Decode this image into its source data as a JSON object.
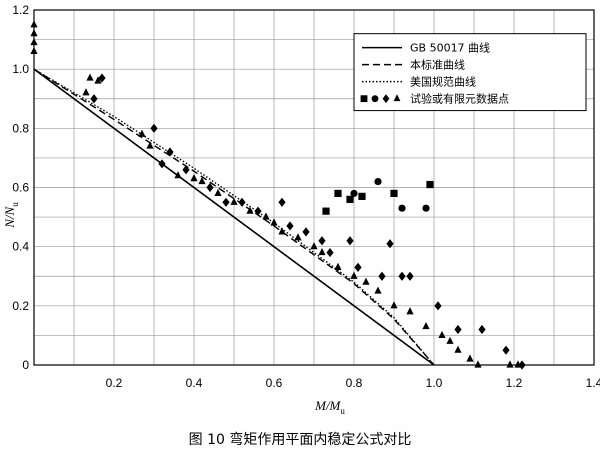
{
  "chart_data": {
    "type": "scatter",
    "caption": "图 10   弯矩作用平面内稳定公式对比",
    "xlabel": {
      "main": "M/M",
      "sub": "u"
    },
    "ylabel": {
      "main": "N/N",
      "sub": "u"
    },
    "xlim": [
      0,
      1.4
    ],
    "ylim": [
      0,
      1.2
    ],
    "x_ticks": [
      {
        "value": 0.2,
        "label": "0.2"
      },
      {
        "value": 0.4,
        "label": "0.4"
      },
      {
        "value": 0.6,
        "label": "0.6"
      },
      {
        "value": 0.8,
        "label": "0.8"
      },
      {
        "value": 1.0,
        "label": "1.0"
      },
      {
        "value": 1.2,
        "label": "1.2"
      },
      {
        "value": 1.4,
        "label": "1.4"
      }
    ],
    "y_ticks": [
      {
        "value": 0,
        "label": "0"
      },
      {
        "value": 0.2,
        "label": "0.2"
      },
      {
        "value": 0.4,
        "label": "0.4"
      },
      {
        "value": 0.6,
        "label": "0.6"
      },
      {
        "value": 0.8,
        "label": "0.8"
      },
      {
        "value": 1.0,
        "label": "1.0"
      },
      {
        "value": 1.2,
        "label": "1.2"
      }
    ],
    "grid": true,
    "legend_position": "top-right",
    "legend": [
      {
        "label": "GB 50017 曲线",
        "style": "solid"
      },
      {
        "label": "本标准曲线",
        "style": "dashed"
      },
      {
        "label": "美国规范曲线",
        "style": "dotted"
      },
      {
        "label": "试验或有限元数据点",
        "style": "markers"
      }
    ],
    "lines": [
      {
        "name": "GB 50017 曲线",
        "style": "solid",
        "points": [
          [
            0,
            1.0
          ],
          [
            1.0,
            0
          ]
        ]
      },
      {
        "name": "本标准曲线",
        "style": "dashed",
        "points": [
          [
            0,
            1.0
          ],
          [
            0.2,
            0.83
          ],
          [
            0.4,
            0.655
          ],
          [
            0.6,
            0.47
          ],
          [
            0.8,
            0.275
          ],
          [
            0.9,
            0.155
          ],
          [
            1.0,
            0
          ]
        ]
      },
      {
        "name": "美国规范曲线",
        "style": "dotted",
        "points": [
          [
            0,
            1.0
          ],
          [
            0.2,
            0.84
          ],
          [
            0.4,
            0.665
          ],
          [
            0.6,
            0.48
          ],
          [
            0.8,
            0.28
          ],
          [
            0.9,
            0.16
          ],
          [
            1.0,
            0
          ]
        ]
      }
    ],
    "series": [
      {
        "marker": "square",
        "points": [
          [
            0.73,
            0.52
          ],
          [
            0.76,
            0.58
          ],
          [
            0.79,
            0.56
          ],
          [
            0.82,
            0.57
          ],
          [
            0.9,
            0.58
          ],
          [
            0.99,
            0.61
          ]
        ]
      },
      {
        "marker": "circle",
        "points": [
          [
            0.8,
            0.58
          ],
          [
            0.86,
            0.62
          ],
          [
            0.92,
            0.53
          ],
          [
            0.98,
            0.53
          ]
        ]
      },
      {
        "marker": "diamond",
        "points": [
          [
            0.15,
            0.9
          ],
          [
            0.17,
            0.97
          ],
          [
            0.3,
            0.8
          ],
          [
            0.32,
            0.68
          ],
          [
            0.34,
            0.72
          ],
          [
            0.38,
            0.66
          ],
          [
            0.44,
            0.6
          ],
          [
            0.48,
            0.55
          ],
          [
            0.52,
            0.55
          ],
          [
            0.56,
            0.52
          ],
          [
            0.62,
            0.55
          ],
          [
            0.64,
            0.47
          ],
          [
            0.68,
            0.45
          ],
          [
            0.72,
            0.42
          ],
          [
            0.74,
            0.38
          ],
          [
            0.79,
            0.42
          ],
          [
            0.81,
            0.33
          ],
          [
            0.87,
            0.3
          ],
          [
            0.89,
            0.41
          ],
          [
            0.92,
            0.3
          ],
          [
            0.94,
            0.3
          ],
          [
            1.01,
            0.2
          ],
          [
            1.06,
            0.12
          ],
          [
            1.12,
            0.12
          ],
          [
            1.18,
            0.05
          ],
          [
            1.22,
            0.0
          ]
        ]
      },
      {
        "marker": "triangle",
        "points": [
          [
            0,
            1.15
          ],
          [
            0,
            1.12
          ],
          [
            0,
            1.09
          ],
          [
            0,
            1.06
          ],
          [
            0.13,
            0.92
          ],
          [
            0.14,
            0.97
          ],
          [
            0.16,
            0.96
          ],
          [
            0.27,
            0.78
          ],
          [
            0.29,
            0.74
          ],
          [
            0.36,
            0.64
          ],
          [
            0.4,
            0.63
          ],
          [
            0.42,
            0.62
          ],
          [
            0.46,
            0.58
          ],
          [
            0.5,
            0.55
          ],
          [
            0.54,
            0.52
          ],
          [
            0.58,
            0.5
          ],
          [
            0.6,
            0.48
          ],
          [
            0.62,
            0.45
          ],
          [
            0.66,
            0.43
          ],
          [
            0.7,
            0.4
          ],
          [
            0.72,
            0.38
          ],
          [
            0.76,
            0.33
          ],
          [
            0.8,
            0.3
          ],
          [
            0.83,
            0.28
          ],
          [
            0.86,
            0.25
          ],
          [
            0.9,
            0.2
          ],
          [
            0.94,
            0.18
          ],
          [
            0.98,
            0.13
          ],
          [
            1.02,
            0.1
          ],
          [
            1.04,
            0.08
          ],
          [
            1.06,
            0.05
          ],
          [
            1.09,
            0.02
          ],
          [
            1.11,
            0.0
          ],
          [
            1.19,
            0.0
          ],
          [
            1.21,
            0.0
          ]
        ]
      }
    ]
  }
}
